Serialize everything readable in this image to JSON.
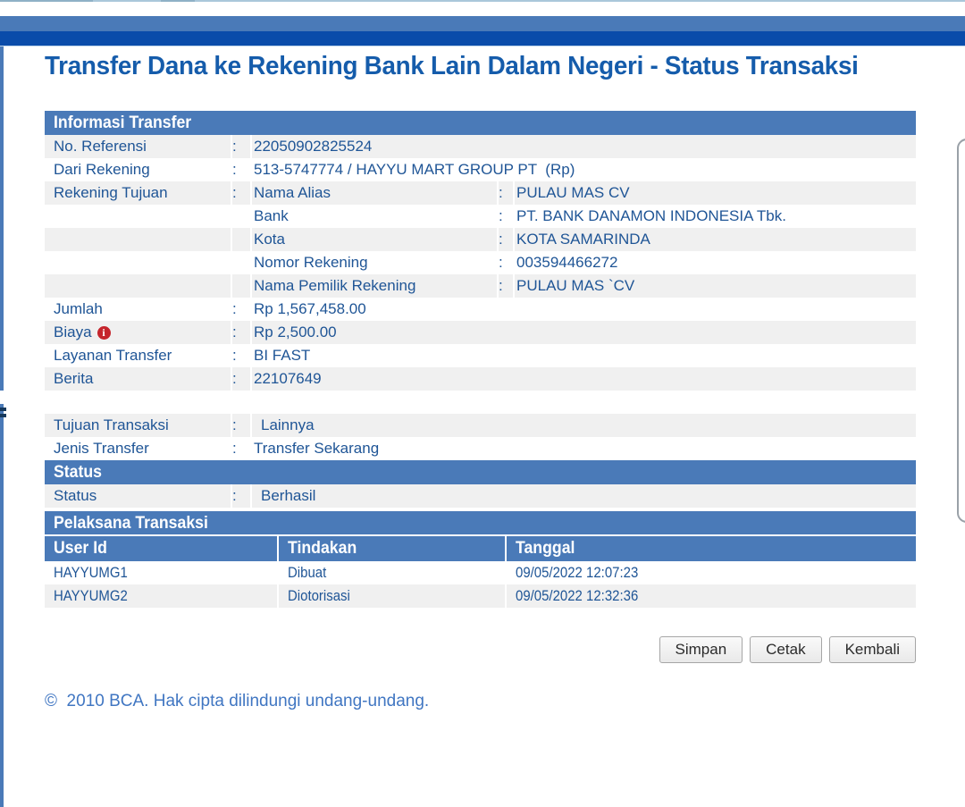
{
  "title": "Transfer Dana ke Rekening Bank Lain Dalam Negeri - Status Transaksi",
  "punct": {
    "colon": ":"
  },
  "informasi": {
    "header": "Informasi Transfer",
    "referensi": {
      "label": "No. Referensi",
      "value": "22050902825524"
    },
    "dari": {
      "label": "Dari Rekening",
      "value": "513-5747774 / HAYYU MART GROUP PT  (Rp)"
    },
    "tujuan": {
      "label": "Rekening Tujuan",
      "subs": [
        {
          "label": "Nama Alias",
          "value": "PULAU MAS CV"
        },
        {
          "label": "Bank",
          "value": "PT. BANK DANAMON INDONESIA Tbk."
        },
        {
          "label": "Kota",
          "value": "KOTA SAMARINDA"
        },
        {
          "label": "Nomor Rekening",
          "value": "003594466272"
        },
        {
          "label": "Nama Pemilik Rekening",
          "value": "PULAU MAS `CV"
        }
      ]
    },
    "jumlah": {
      "label": "Jumlah",
      "value": "Rp 1,567,458.00"
    },
    "biaya": {
      "label": "Biaya",
      "value": "Rp 2,500.00",
      "icon_glyph": "i"
    },
    "layanan": {
      "label": "Layanan Transfer",
      "value": "BI FAST"
    },
    "berita": {
      "label": "Berita",
      "value": "22107649"
    },
    "tujuan_transaksi": {
      "label": "Tujuan Transaksi",
      "value": "Lainnya"
    },
    "jenis": {
      "label": "Jenis Transfer",
      "value": "Transfer Sekarang"
    }
  },
  "status_section": {
    "header": "Status",
    "row": {
      "label": "Status",
      "value": "Berhasil"
    }
  },
  "pelaksana": {
    "header": "Pelaksana Transaksi",
    "columns": [
      "User Id",
      "Tindakan",
      "Tanggal"
    ],
    "rows": [
      {
        "user_id": "HAYYUMG1",
        "tindakan": "Dibuat",
        "tanggal": "09/05/2022 12:07:23"
      },
      {
        "user_id": "HAYYUMG2",
        "tindakan": "Diotorisasi",
        "tanggal": "09/05/2022 12:32:36"
      }
    ]
  },
  "buttons": {
    "simpan": "Simpan",
    "cetak": "Cetak",
    "kembali": "Kembali"
  },
  "footer": "©  2010 BCA. Hak cipta dilindungi undang-undang.",
  "colors": {
    "section_header_bg": "#4a7ab8",
    "secondary_bar": "#0a4caa",
    "row_alt_gray": "#f0f0f0",
    "table_text_blue": "#1f5596",
    "title_blue": "#155cab",
    "footer_blue": "#4076c2",
    "info_icon_red": "#c5252c"
  }
}
